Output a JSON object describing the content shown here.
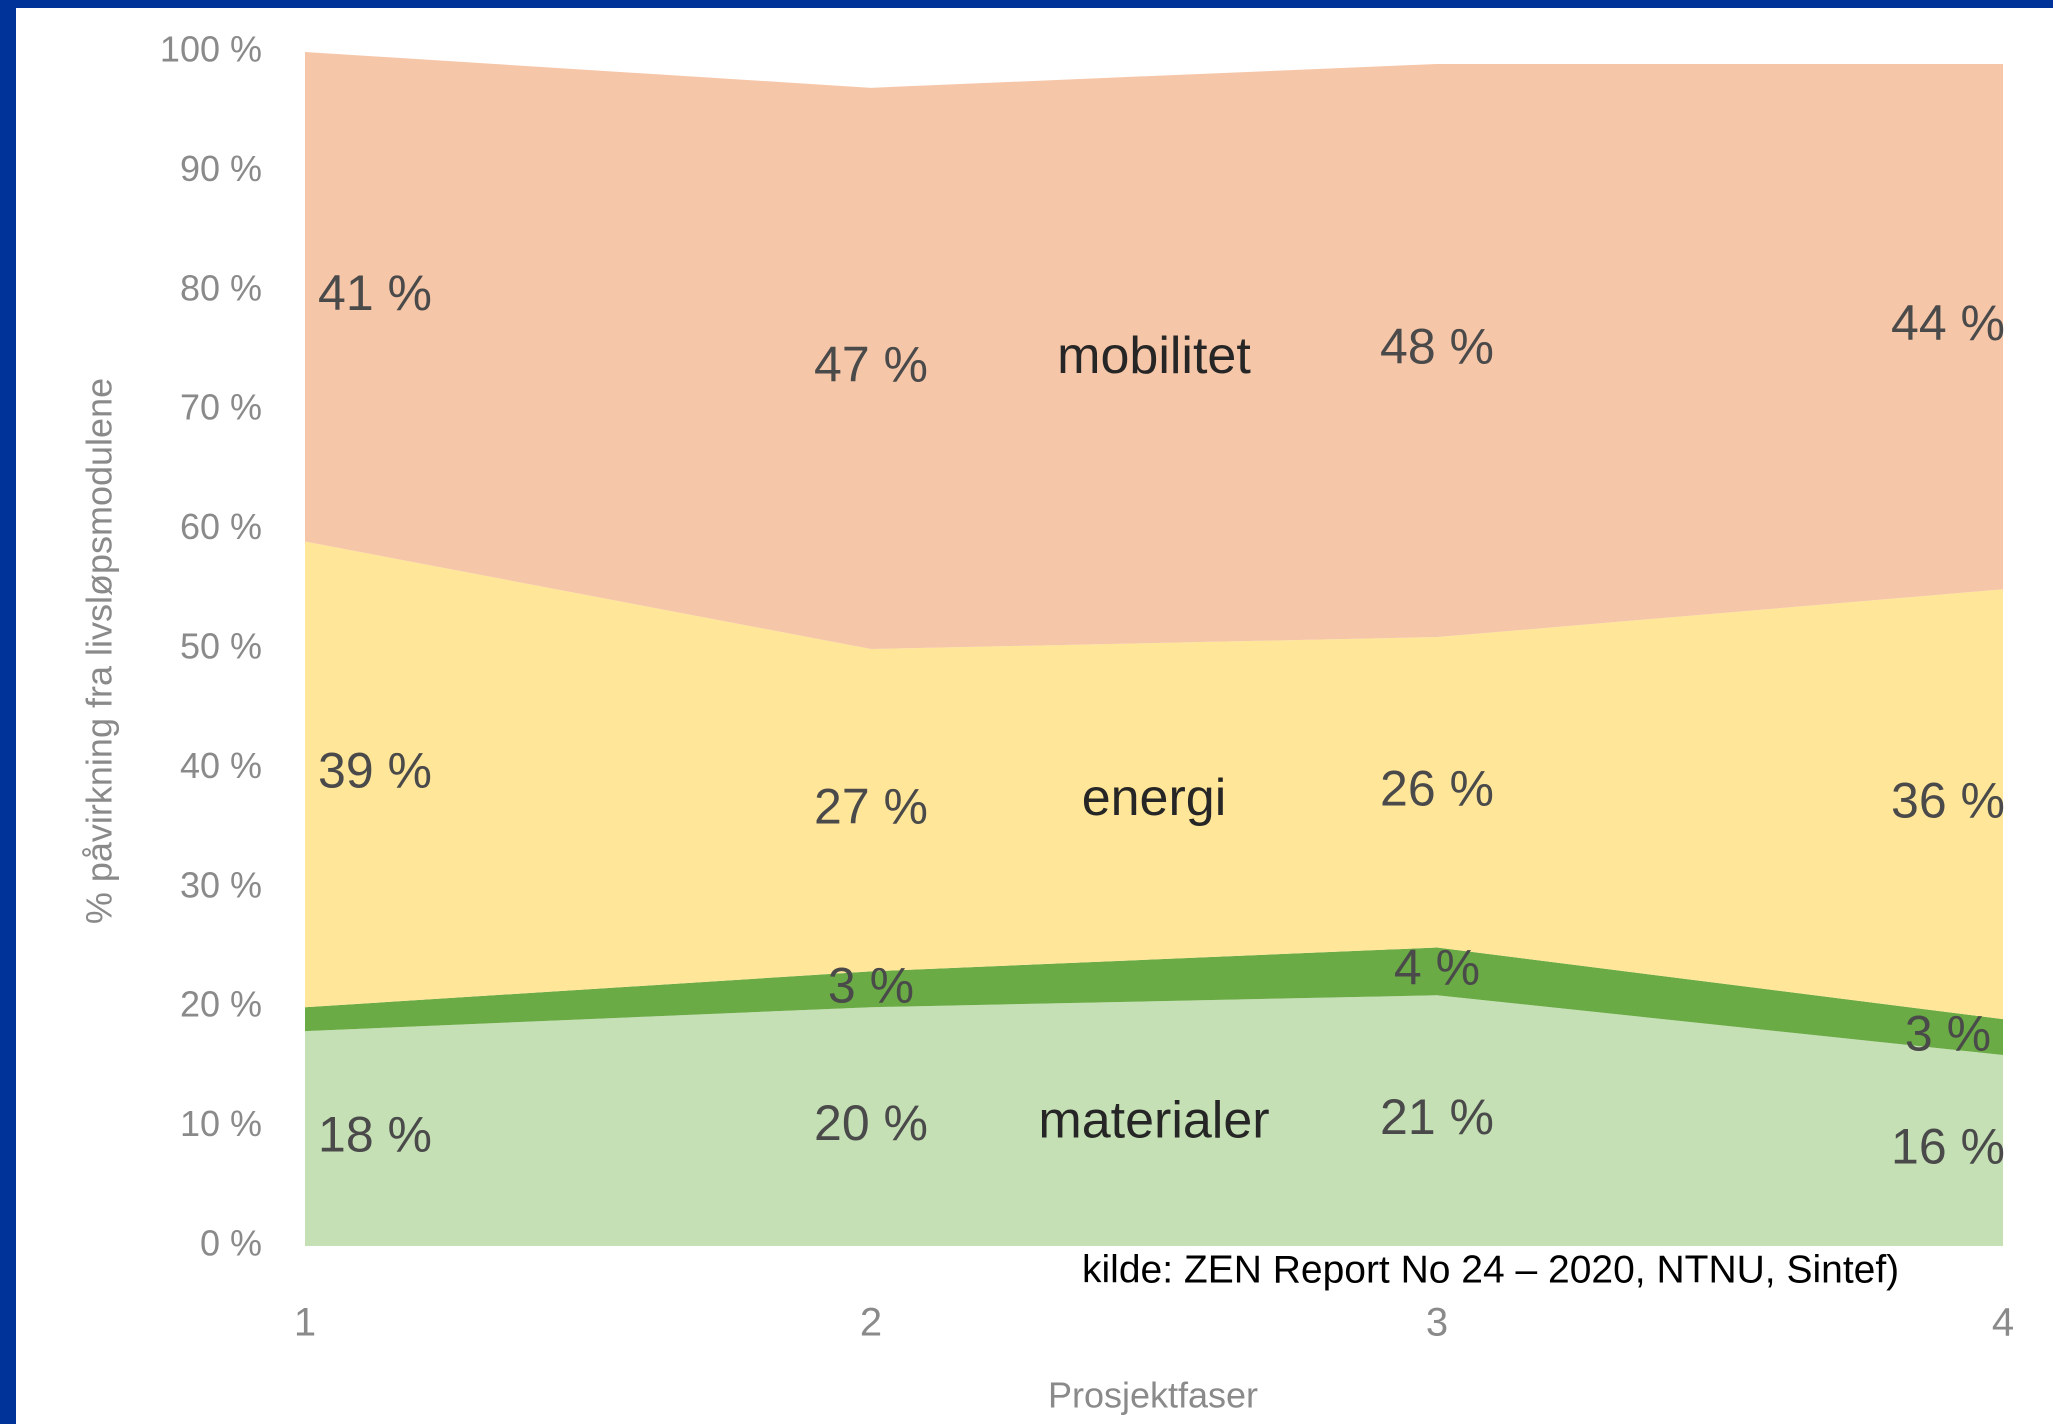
{
  "chart_data": {
    "type": "stacked_area",
    "x": [
      1,
      2,
      3,
      4
    ],
    "xlim": [
      1,
      4
    ],
    "xticks": [
      1,
      2,
      3,
      4
    ],
    "xlabel": "Prosjektfaser",
    "ylabel": "% påvirkning fra livsløpsmodulene",
    "ylim": [
      0,
      100
    ],
    "yticks": [
      {
        "value": 0,
        "label": "0 %"
      },
      {
        "value": 10,
        "label": "10 %"
      },
      {
        "value": 20,
        "label": "20 %"
      },
      {
        "value": 30,
        "label": "30 %"
      },
      {
        "value": 40,
        "label": "40 %"
      },
      {
        "value": 50,
        "label": "50 %"
      },
      {
        "value": 60,
        "label": "60 %"
      },
      {
        "value": 70,
        "label": "70 %"
      },
      {
        "value": 80,
        "label": "80 %"
      },
      {
        "value": 90,
        "label": "90 %"
      },
      {
        "value": 100,
        "label": "100 %"
      }
    ],
    "series": [
      {
        "name": "materialer",
        "color": "#c5e0b4",
        "values": [
          18,
          20,
          21,
          16
        ],
        "value_labels": [
          "18 %",
          "20 %",
          "21 %",
          "16 %"
        ]
      },
      {
        "color": "#6aab45",
        "values": [
          2,
          3,
          4,
          3
        ],
        "value_labels": [
          null,
          "3 %",
          "4 %",
          "3 %"
        ]
      },
      {
        "name": "energi",
        "color": "#ffe699",
        "values": [
          39,
          27,
          26,
          36
        ],
        "value_labels": [
          "39 %",
          "27 %",
          "26 %",
          "36 %"
        ]
      },
      {
        "name": "mobilitet",
        "color": "#f6c6a8",
        "values": [
          41,
          47,
          48,
          44
        ],
        "value_labels": [
          "41 %",
          "47 %",
          "48 %",
          "44 %"
        ]
      }
    ],
    "source": "kilde: ZEN Report No 24 – 2020, NTNU, Sintef)"
  }
}
